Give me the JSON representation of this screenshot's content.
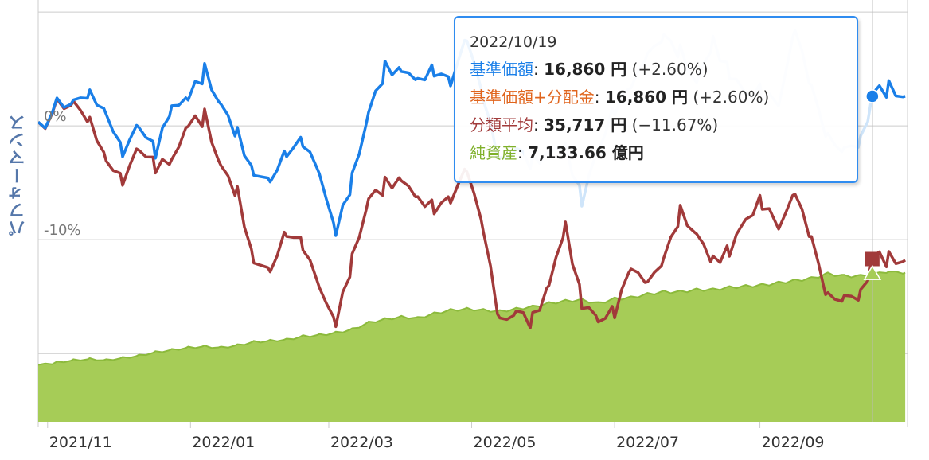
{
  "chart_data": {
    "type": "line",
    "ylabel": "パフォーマンス",
    "y_tick_labels": [
      "0%",
      "-10%"
    ],
    "y_ticks": [
      0,
      -10
    ],
    "ylim": [
      -26,
      10.5
    ],
    "x_tick_labels": [
      "2021/11",
      "2022/01",
      "2022/03",
      "2022/05",
      "2022/07",
      "2022/09"
    ],
    "x_ticks": [
      "2021-11-01",
      "2022-01-01",
      "2022-03-01",
      "2022-05-01",
      "2022-07-01",
      "2022-09-01"
    ],
    "xlim": [
      "2021-10-28",
      "2022-11-03"
    ],
    "grid": true,
    "colors": {
      "nav": "#1a7fe8",
      "nav_dimmed": "#cfe5fa",
      "category": "#a13a3a",
      "net_assets_fill": "#a6cc57",
      "net_assets_line": "#8cba3c",
      "tooltip_border": "#2f8cf0"
    },
    "series": [
      {
        "name": "基準価額",
        "color": "#1a7fe8",
        "x": [
          "2021-10-28",
          "2021-11-05",
          "2021-11-12",
          "2021-11-19",
          "2021-11-26",
          "2021-12-03",
          "2021-12-10",
          "2021-12-17",
          "2021-12-24",
          "2021-12-31",
          "2022-01-07",
          "2022-01-14",
          "2022-01-21",
          "2022-01-28",
          "2022-02-04",
          "2022-02-11",
          "2022-02-18",
          "2022-02-25",
          "2022-03-04",
          "2022-03-11",
          "2022-03-18",
          "2022-03-25",
          "2022-04-01",
          "2022-04-08",
          "2022-04-15",
          "2022-04-22",
          "2022-04-29",
          "2022-05-06",
          "2022-05-13",
          "2022-05-20",
          "2022-05-27",
          "2022-06-03",
          "2022-06-10",
          "2022-06-17",
          "2022-06-24",
          "2022-07-01",
          "2022-07-08",
          "2022-07-15",
          "2022-07-22",
          "2022-07-29",
          "2022-08-05",
          "2022-08-12",
          "2022-08-19",
          "2022-08-26",
          "2022-09-02",
          "2022-09-09",
          "2022-09-16",
          "2022-09-23",
          "2022-09-30",
          "2022-10-07",
          "2022-10-14",
          "2022-10-19",
          "2022-10-26",
          "2022-11-02"
        ],
        "values": [
          0.0,
          1.7,
          2.3,
          3.2,
          1.5,
          -2.1,
          0.1,
          -2.5,
          1.2,
          2.1,
          4.6,
          1.9,
          -0.4,
          -3.8,
          -4.5,
          -2.2,
          -1.5,
          -4.5,
          -9.8,
          -5.0,
          1.1,
          5.2,
          5.3,
          4.4,
          5.1,
          3.8,
          7.5,
          2.0,
          -3.5,
          -2.2,
          -3.1,
          -2.0,
          -1.5,
          -6.2,
          -2.0,
          1.3,
          3.1,
          5.9,
          7.6,
          6.5,
          4.0,
          7.8,
          5.0,
          3.0,
          2.9,
          1.5,
          8.2,
          3.0,
          -1.2,
          -2.0,
          -1.0,
          2.6,
          3.1,
          2.6
        ]
      },
      {
        "name": "分類平均",
        "color": "#a13a3a",
        "x": [
          "2021-10-28",
          "2021-11-05",
          "2021-11-12",
          "2021-11-19",
          "2021-11-26",
          "2021-12-03",
          "2021-12-10",
          "2021-12-17",
          "2021-12-24",
          "2021-12-31",
          "2022-01-07",
          "2022-01-14",
          "2022-01-21",
          "2022-01-28",
          "2022-02-04",
          "2022-02-11",
          "2022-02-18",
          "2022-02-25",
          "2022-03-04",
          "2022-03-11",
          "2022-03-18",
          "2022-03-25",
          "2022-04-01",
          "2022-04-08",
          "2022-04-15",
          "2022-04-22",
          "2022-04-29",
          "2022-05-06",
          "2022-05-13",
          "2022-05-20",
          "2022-05-27",
          "2022-06-03",
          "2022-06-10",
          "2022-06-17",
          "2022-06-24",
          "2022-07-01",
          "2022-07-08",
          "2022-07-15",
          "2022-07-22",
          "2022-07-29",
          "2022-08-05",
          "2022-08-12",
          "2022-08-19",
          "2022-08-26",
          "2022-09-02",
          "2022-09-09",
          "2022-09-16",
          "2022-09-23",
          "2022-09-30",
          "2022-10-07",
          "2022-10-14",
          "2022-10-19",
          "2022-10-26",
          "2022-11-02"
        ],
        "values": [
          0.0,
          1.6,
          2.2,
          0.8,
          -2.6,
          -4.6,
          -1.9,
          -3.8,
          -3.5,
          -0.2,
          0.6,
          -3.5,
          -5.6,
          -11.5,
          -12.4,
          -9.2,
          -10.6,
          -14.5,
          -17.8,
          -12.1,
          -6.5,
          -5.0,
          -4.3,
          -6.0,
          -7.0,
          -6.5,
          -4.0,
          -9.5,
          -17.6,
          -16.5,
          -17.0,
          -13.6,
          -8.4,
          -15.2,
          -17.0,
          -16.5,
          -12.8,
          -14.2,
          -12.0,
          -7.6,
          -9.3,
          -11.5,
          -10.6,
          -8.0,
          -6.7,
          -9.3,
          -6.2,
          -10.3,
          -15.2,
          -15.0,
          -14.5,
          -11.7,
          -11.9,
          -11.8
        ]
      },
      {
        "name": "純資産",
        "color": "#a6cc57",
        "x": [
          "2021-10-28",
          "2021-11-05",
          "2021-11-12",
          "2021-11-19",
          "2021-11-26",
          "2021-12-03",
          "2021-12-10",
          "2021-12-17",
          "2021-12-24",
          "2021-12-31",
          "2022-01-07",
          "2022-01-14",
          "2022-01-21",
          "2022-01-28",
          "2022-02-04",
          "2022-02-11",
          "2022-02-18",
          "2022-02-25",
          "2022-03-04",
          "2022-03-11",
          "2022-03-18",
          "2022-03-25",
          "2022-04-01",
          "2022-04-08",
          "2022-04-15",
          "2022-04-22",
          "2022-04-29",
          "2022-05-06",
          "2022-05-13",
          "2022-05-20",
          "2022-05-27",
          "2022-06-03",
          "2022-06-10",
          "2022-06-17",
          "2022-06-24",
          "2022-07-01",
          "2022-07-08",
          "2022-07-15",
          "2022-07-22",
          "2022-07-29",
          "2022-08-05",
          "2022-08-12",
          "2022-08-19",
          "2022-08-26",
          "2022-09-02",
          "2022-09-09",
          "2022-09-16",
          "2022-09-23",
          "2022-09-30",
          "2022-10-07",
          "2022-10-14",
          "2022-10-19",
          "2022-10-26",
          "2022-11-02"
        ],
        "values": [
          -21.0,
          -20.8,
          -20.6,
          -20.5,
          -20.6,
          -20.4,
          -20.2,
          -19.9,
          -19.7,
          -19.5,
          -19.4,
          -19.5,
          -19.3,
          -19.0,
          -18.9,
          -18.8,
          -18.5,
          -18.4,
          -18.2,
          -17.9,
          -17.3,
          -17.0,
          -16.8,
          -16.9,
          -16.5,
          -16.2,
          -16.1,
          -16.2,
          -16.3,
          -16.1,
          -15.9,
          -15.6,
          -15.4,
          -15.3,
          -15.6,
          -15.2,
          -15.1,
          -14.8,
          -14.6,
          -14.6,
          -14.4,
          -14.4,
          -14.2,
          -14.1,
          -14.0,
          -13.8,
          -13.6,
          -13.4,
          -13.0,
          -13.2,
          -13.2,
          -13.0,
          -12.8,
          -12.9
        ]
      }
    ]
  },
  "tooltip": {
    "date": "2022/10/19",
    "rows": [
      {
        "label": "基準価額",
        "label_color": "#1a7fe8",
        "value": "16,860 円",
        "pct": "(+2.60%)"
      },
      {
        "label": "基準価額+分配金",
        "label_color": "#e0641c",
        "value": "16,860 円",
        "pct": "(+2.60%)"
      },
      {
        "label": "分類平均",
        "label_color": "#a13a3a",
        "value": "35,717 円",
        "pct": "(−11.67%)"
      },
      {
        "label": "純資産",
        "label_color": "#7fb02a",
        "value": "7,133.66 億円",
        "pct": ""
      }
    ]
  }
}
